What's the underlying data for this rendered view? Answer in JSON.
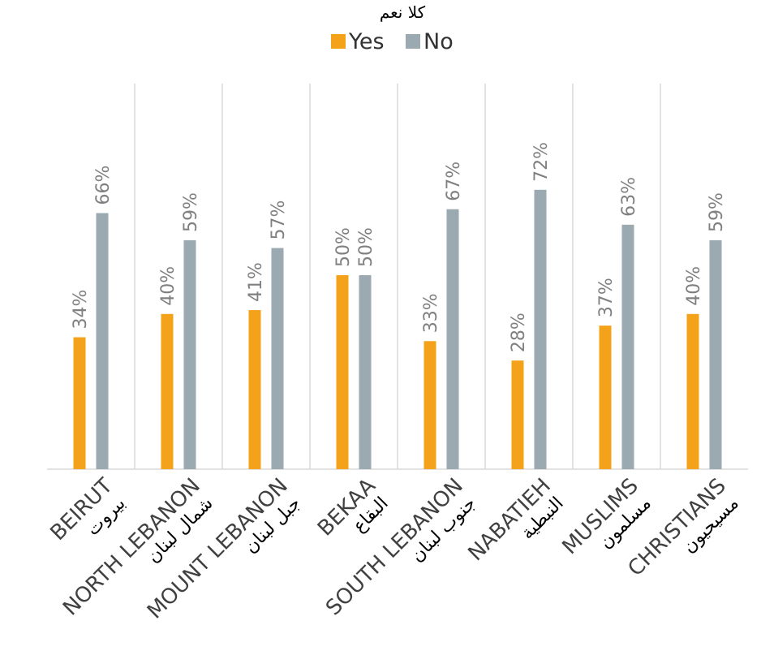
{
  "chart_data": {
    "type": "bar",
    "legend_position": "top",
    "legend_title_ar": "كلا  نعم",
    "series": [
      {
        "name": "Yes",
        "color": "#F5A21B",
        "values": [
          34,
          40,
          41,
          50,
          33,
          28,
          37,
          40
        ]
      },
      {
        "name": "No",
        "color": "#9AAAB0",
        "values": [
          66,
          59,
          57,
          50,
          67,
          72,
          63,
          59
        ]
      }
    ],
    "value_suffix": "%",
    "categories": [
      {
        "en": "BEIRUT",
        "ar": "بيروت"
      },
      {
        "en": "NORTH LEBANON",
        "ar": "شمال لبنان"
      },
      {
        "en": "MOUNT LEBANON",
        "ar": "جبل لبنان"
      },
      {
        "en": "BEKAA",
        "ar": "البقاع"
      },
      {
        "en": "SOUTH LEBANON",
        "ar": "جنوب لبنان"
      },
      {
        "en": "NABATIEH",
        "ar": "النبطية"
      },
      {
        "en": "MUSLIMS",
        "ar": "مسلمون"
      },
      {
        "en": "CHRISTIANS",
        "ar": "مسيحيون"
      }
    ],
    "ylim": [
      0,
      100
    ],
    "grid": "vertical-separators",
    "data_labels": "rotated-vertical"
  }
}
